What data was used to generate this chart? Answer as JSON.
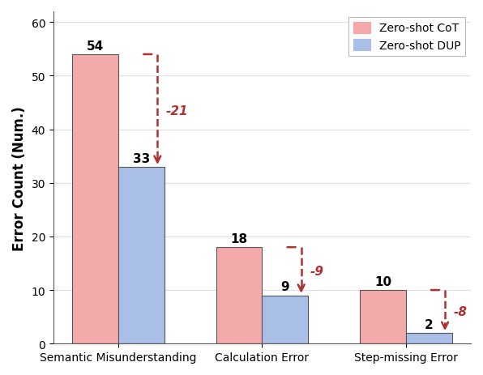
{
  "categories": [
    "Semantic Misunderstanding",
    "Calculation Error",
    "Step-missing Error"
  ],
  "cot_values": [
    54,
    18,
    10
  ],
  "dup_values": [
    33,
    9,
    2
  ],
  "differences": [
    "-21",
    "-9",
    "-8"
  ],
  "cot_color": "#F4AAAA",
  "dup_color": "#AABFE8",
  "arrow_color": "#B03030",
  "ylabel": "Error Count (Num.)",
  "ylim": [
    0,
    62
  ],
  "yticks": [
    0,
    10,
    20,
    30,
    40,
    50,
    60
  ],
  "legend_labels": [
    "Zero-shot CoT",
    "Zero-shot DUP"
  ],
  "bar_width": 0.32,
  "figsize": [
    5.96,
    4.64
  ],
  "dpi": 100,
  "label_fontsize": 11,
  "diff_fontsize": 11,
  "ylabel_fontsize": 12,
  "tick_fontsize": 10,
  "legend_fontsize": 10
}
